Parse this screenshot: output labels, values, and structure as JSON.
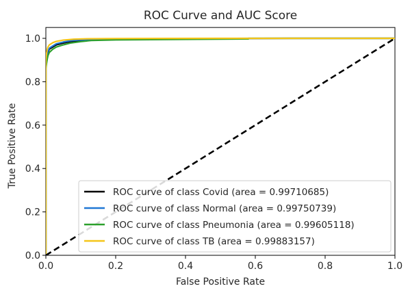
{
  "chart_data": {
    "type": "line",
    "title": "ROC Curve and AUC Score",
    "xlabel": "False Positive Rate",
    "ylabel": "True Positive Rate",
    "xlim": [
      0.0,
      1.0
    ],
    "ylim": [
      0.0,
      1.05
    ],
    "x_ticks": [
      0.0,
      0.2,
      0.4,
      0.6,
      0.8,
      1.0
    ],
    "x_tick_labels": [
      "0.0",
      "0.2",
      "0.4",
      "0.6",
      "0.8",
      "1.0"
    ],
    "y_ticks": [
      0.0,
      0.2,
      0.4,
      0.6,
      0.8,
      1.0
    ],
    "y_tick_labels": [
      "0.0",
      "0.2",
      "0.4",
      "0.6",
      "0.8",
      "1.0"
    ],
    "grid": false,
    "legend_position": "lower-right",
    "series": [
      {
        "name": "ROC curve of class Covid (area = 0.99710685)",
        "color": "#000000",
        "x": [
          0.0,
          0.0,
          0.002,
          0.004,
          0.006,
          0.01,
          0.02,
          0.03,
          0.05,
          0.07,
          0.1,
          0.13,
          0.2,
          0.4,
          0.7,
          1.0
        ],
        "y": [
          0.0,
          0.88,
          0.9,
          0.92,
          0.935,
          0.95,
          0.96,
          0.97,
          0.978,
          0.985,
          0.99,
          0.995,
          0.997,
          0.999,
          1.0,
          1.0
        ]
      },
      {
        "name": "ROC curve of class Normal (area = 0.99750739)",
        "color": "#1f77d4",
        "x": [
          0.0,
          0.0,
          0.002,
          0.004,
          0.006,
          0.01,
          0.02,
          0.03,
          0.05,
          0.07,
          0.1,
          0.15,
          0.3,
          0.6,
          1.0
        ],
        "y": [
          0.0,
          0.89,
          0.91,
          0.93,
          0.94,
          0.955,
          0.965,
          0.975,
          0.983,
          0.989,
          0.993,
          0.996,
          0.998,
          1.0,
          1.0
        ]
      },
      {
        "name": "ROC curve of class Pneumonia (area = 0.99605118)",
        "color": "#2ca02c",
        "x": [
          0.0,
          0.0,
          0.002,
          0.004,
          0.006,
          0.01,
          0.02,
          0.03,
          0.05,
          0.07,
          0.1,
          0.13,
          0.2,
          0.4,
          0.58,
          0.58,
          1.0
        ],
        "y": [
          0.0,
          0.86,
          0.885,
          0.905,
          0.92,
          0.935,
          0.95,
          0.96,
          0.97,
          0.978,
          0.985,
          0.99,
          0.993,
          0.995,
          0.997,
          1.0,
          1.0
        ]
      },
      {
        "name": "ROC curve of class TB (area = 0.99883157)",
        "color": "#f5c518",
        "x": [
          0.0,
          0.0,
          0.002,
          0.004,
          0.006,
          0.01,
          0.02,
          0.03,
          0.05,
          0.08,
          0.12,
          0.2,
          0.5,
          1.0
        ],
        "y": [
          0.0,
          0.9,
          0.93,
          0.95,
          0.96,
          0.97,
          0.98,
          0.986,
          0.992,
          0.996,
          0.998,
          0.999,
          1.0,
          1.0
        ]
      }
    ],
    "reference_line": {
      "style": "dashed",
      "color": "#000000",
      "x": [
        0.0,
        1.0
      ],
      "y": [
        0.0,
        1.0
      ]
    }
  }
}
